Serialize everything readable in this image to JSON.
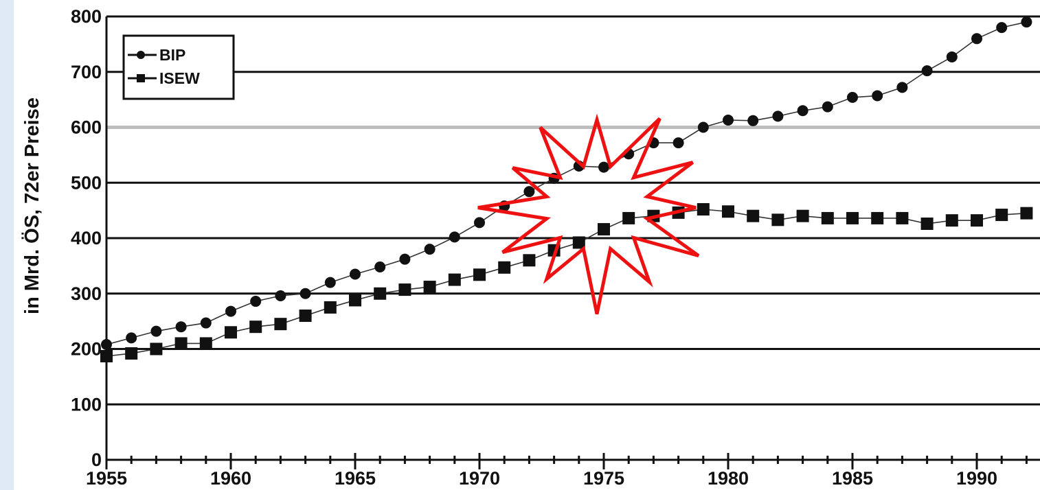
{
  "chart_data": {
    "type": "line",
    "title": "",
    "xlabel": "",
    "ylabel": "in Mrd. ÖS, 72er Preise",
    "xlim": [
      1955,
      1992
    ],
    "ylim": [
      0,
      800
    ],
    "grid": true,
    "legend_position": "top-left",
    "x_ticks": [
      1955,
      1960,
      1965,
      1970,
      1975,
      1980,
      1985,
      1990
    ],
    "y_ticks": [
      0,
      100,
      200,
      300,
      400,
      500,
      600,
      700,
      800
    ],
    "series": [
      {
        "name": "BIP",
        "marker": "diamond",
        "color": "#111111",
        "points": [
          [
            1955,
            208
          ],
          [
            1956,
            220
          ],
          [
            1957,
            232
          ],
          [
            1958,
            240
          ],
          [
            1959,
            247
          ],
          [
            1960,
            268
          ],
          [
            1961,
            286
          ],
          [
            1962,
            296
          ],
          [
            1963,
            300
          ],
          [
            1964,
            320
          ],
          [
            1965,
            335
          ],
          [
            1966,
            348
          ],
          [
            1967,
            362
          ],
          [
            1968,
            380
          ],
          [
            1969,
            402
          ],
          [
            1970,
            428
          ],
          [
            1971,
            458
          ],
          [
            1972,
            484
          ],
          [
            1973,
            508
          ],
          [
            1974,
            530
          ],
          [
            1975,
            528
          ],
          [
            1976,
            552
          ],
          [
            1977,
            572
          ],
          [
            1978,
            572
          ],
          [
            1979,
            600
          ],
          [
            1980,
            613
          ],
          [
            1981,
            612
          ],
          [
            1982,
            620
          ],
          [
            1983,
            630
          ],
          [
            1984,
            637
          ],
          [
            1985,
            654
          ],
          [
            1986,
            657
          ],
          [
            1987,
            672
          ],
          [
            1988,
            702
          ],
          [
            1989,
            727
          ],
          [
            1990,
            760
          ],
          [
            1991,
            780
          ],
          [
            1992,
            790
          ]
        ]
      },
      {
        "name": "ISEW",
        "marker": "square",
        "color": "#111111",
        "points": [
          [
            1955,
            187
          ],
          [
            1956,
            192
          ],
          [
            1957,
            200
          ],
          [
            1958,
            210
          ],
          [
            1959,
            210
          ],
          [
            1960,
            230
          ],
          [
            1961,
            240
          ],
          [
            1962,
            245
          ],
          [
            1963,
            260
          ],
          [
            1964,
            275
          ],
          [
            1965,
            288
          ],
          [
            1966,
            300
          ],
          [
            1967,
            307
          ],
          [
            1968,
            312
          ],
          [
            1969,
            325
          ],
          [
            1970,
            334
          ],
          [
            1971,
            347
          ],
          [
            1972,
            360
          ],
          [
            1973,
            378
          ],
          [
            1974,
            392
          ],
          [
            1975,
            416
          ],
          [
            1976,
            436
          ],
          [
            1977,
            440
          ],
          [
            1978,
            446
          ],
          [
            1979,
            452
          ],
          [
            1980,
            448
          ],
          [
            1981,
            440
          ],
          [
            1982,
            433
          ],
          [
            1983,
            440
          ],
          [
            1984,
            436
          ],
          [
            1985,
            436
          ],
          [
            1986,
            436
          ],
          [
            1987,
            436
          ],
          [
            1988,
            426
          ],
          [
            1989,
            432
          ],
          [
            1990,
            432
          ],
          [
            1991,
            442
          ],
          [
            1992,
            445
          ]
        ]
      }
    ],
    "annotation": {
      "type": "starburst",
      "color": "#ee1111",
      "points": 12,
      "center": [
        1975,
        455
      ]
    }
  }
}
